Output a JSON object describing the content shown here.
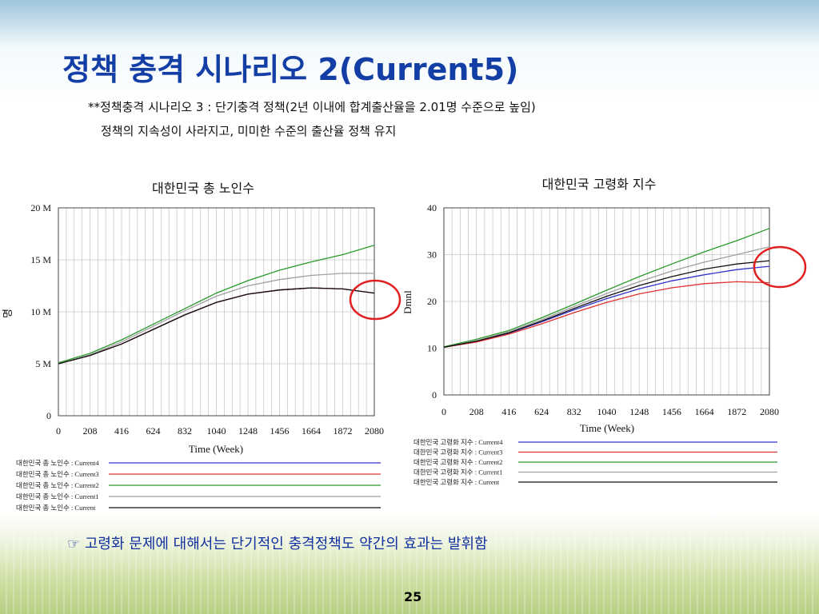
{
  "slide": {
    "title": "정책 충격 시나리오 2(Current5)",
    "subtitle_line1": "**정책충격 시나리오 3 : 단기충격 정책(2년 이내에 합계출산율을 2.01명 수준으로 높임)",
    "subtitle_line2": "정책의 지속성이 사라지고, 미미한 수준의 출산율 정책 유지",
    "note": "☞ 고령화 문제에 대해서는 단기적인 충격정책도 약간의 효과는 발휘함",
    "page_number": "25"
  },
  "chart_data": [
    {
      "type": "line",
      "title": "대한민국 총 노인수",
      "xlabel": "Time (Week)",
      "ylabel": "명",
      "xlim": [
        0,
        2080
      ],
      "ylim": [
        0,
        20000000
      ],
      "x_ticks": [
        "0",
        "208",
        "416",
        "624",
        "832",
        "1040",
        "1248",
        "1456",
        "1664",
        "1872",
        "2080"
      ],
      "y_ticks": [
        {
          "value": 0,
          "label": "0"
        },
        {
          "value": 5000000,
          "label": "5 M"
        },
        {
          "value": 10000000,
          "label": "10 M"
        },
        {
          "value": 15000000,
          "label": "15 M"
        },
        {
          "value": 20000000,
          "label": "20 M"
        }
      ],
      "x": [
        0,
        208,
        416,
        624,
        832,
        1040,
        1248,
        1456,
        1664,
        1872,
        2080
      ],
      "series": [
        {
          "name": "대한민국 총 노인수 : Current4",
          "color": "#3333cc",
          "values": [
            5000000,
            5800000,
            6900000,
            8300000,
            9700000,
            10900000,
            11700000,
            12100000,
            12300000,
            12200000,
            11800000
          ]
        },
        {
          "name": "대한민국 총 노인수 : Current3",
          "color": "#e03030",
          "values": [
            5000000,
            5800000,
            6900000,
            8300000,
            9700000,
            10900000,
            11700000,
            12100000,
            12300000,
            12200000,
            11800000
          ]
        },
        {
          "name": "대한민국 총 노인수 : Current2",
          "color": "#2a9a2a",
          "values": [
            5100000,
            6000000,
            7300000,
            8800000,
            10300000,
            11800000,
            13000000,
            14000000,
            14800000,
            15500000,
            16400000
          ]
        },
        {
          "name": "대한민국 총 노인수 : Current1",
          "color": "#a0a0a0",
          "values": [
            5000000,
            5850000,
            7100000,
            8600000,
            10100000,
            11500000,
            12500000,
            13100000,
            13500000,
            13700000,
            13700000
          ]
        },
        {
          "name": "대한민국 총 노인수 : Current",
          "color": "#111111",
          "values": [
            5000000,
            5800000,
            6900000,
            8300000,
            9700000,
            10900000,
            11700000,
            12100000,
            12300000,
            12200000,
            11800000
          ]
        }
      ],
      "highlight_at": {
        "x": 2080,
        "y": 12000000,
        "color": "#e02020"
      }
    },
    {
      "type": "line",
      "title": "대한민국 고령화 지수",
      "xlabel": "Time (Week)",
      "ylabel": "Dmnl",
      "xlim": [
        0,
        2080
      ],
      "ylim": [
        0,
        40
      ],
      "x_ticks": [
        "0",
        "208",
        "416",
        "624",
        "832",
        "1040",
        "1248",
        "1456",
        "1664",
        "1872",
        "2080"
      ],
      "y_ticks": [
        {
          "value": 0,
          "label": "0"
        },
        {
          "value": 10,
          "label": "10"
        },
        {
          "value": 20,
          "label": "20"
        },
        {
          "value": 30,
          "label": "30"
        },
        {
          "value": 40,
          "label": "40"
        }
      ],
      "x": [
        0,
        208,
        416,
        624,
        832,
        1040,
        1248,
        1456,
        1664,
        1872,
        2080
      ],
      "series": [
        {
          "name": "대한민국 고령화 지수 : Current4",
          "color": "#3333cc",
          "values": [
            10.2,
            11.4,
            13.2,
            15.6,
            18.2,
            20.6,
            22.7,
            24.4,
            25.7,
            26.8,
            27.5
          ]
        },
        {
          "name": "대한민국 고령화 지수 : Current3",
          "color": "#e03030",
          "values": [
            10.2,
            11.3,
            13.0,
            15.2,
            17.6,
            19.8,
            21.6,
            22.9,
            23.8,
            24.2,
            24.0
          ]
        },
        {
          "name": "대한민국 고령화 지수 : Current2",
          "color": "#2a9a2a",
          "values": [
            10.3,
            11.9,
            13.8,
            16.5,
            19.4,
            22.4,
            25.3,
            28.0,
            30.6,
            33.0,
            35.6
          ]
        },
        {
          "name": "대한민국 고령화 지수 : Current1",
          "color": "#a0a0a0",
          "values": [
            10.2,
            11.6,
            13.5,
            16.1,
            18.9,
            21.7,
            24.2,
            26.5,
            28.4,
            30.0,
            31.7
          ]
        },
        {
          "name": "대한민국 고령화 지수 : Current",
          "color": "#111111",
          "values": [
            10.2,
            11.5,
            13.3,
            15.8,
            18.5,
            21.1,
            23.4,
            25.3,
            26.9,
            28.0,
            28.7
          ]
        }
      ],
      "highlight_at": {
        "x": 2080,
        "y": 29,
        "color": "#e02020"
      }
    }
  ]
}
